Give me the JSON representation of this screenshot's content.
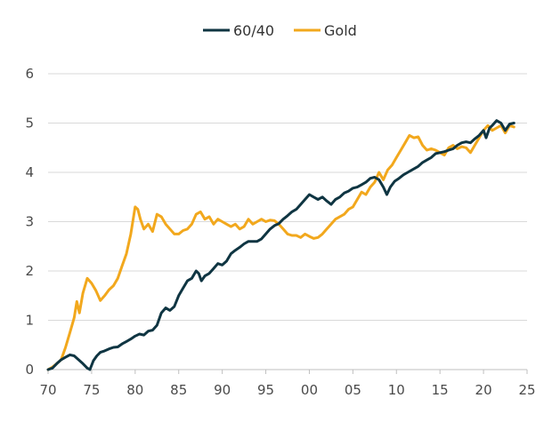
{
  "chart_data": {
    "type": "line",
    "title": "",
    "xlabel": "",
    "ylabel": "",
    "xlim": [
      1970,
      2025
    ],
    "ylim": [
      0,
      6
    ],
    "x_ticks": [
      {
        "value": 1970,
        "label": "70"
      },
      {
        "value": 1975,
        "label": "75"
      },
      {
        "value": 1980,
        "label": "80"
      },
      {
        "value": 1985,
        "label": "85"
      },
      {
        "value": 1990,
        "label": "90"
      },
      {
        "value": 1995,
        "label": "95"
      },
      {
        "value": 2000,
        "label": "00"
      },
      {
        "value": 2005,
        "label": "05"
      },
      {
        "value": 2010,
        "label": "10"
      },
      {
        "value": 2015,
        "label": "15"
      },
      {
        "value": 2020,
        "label": "20"
      },
      {
        "value": 2025,
        "label": "25"
      }
    ],
    "y_ticks": [
      {
        "value": 0,
        "label": "0"
      },
      {
        "value": 1,
        "label": "1"
      },
      {
        "value": 2,
        "label": "2"
      },
      {
        "value": 3,
        "label": "3"
      },
      {
        "value": 4,
        "label": "4"
      },
      {
        "value": 5,
        "label": "5"
      },
      {
        "value": 6,
        "label": "6"
      }
    ],
    "grid": true,
    "legend_position": "top-center",
    "series": [
      {
        "name": "60/40",
        "color": "#0f3542",
        "points": [
          [
            1970.0,
            0.0
          ],
          [
            1970.5,
            0.03
          ],
          [
            1971.0,
            0.12
          ],
          [
            1971.5,
            0.2
          ],
          [
            1972.0,
            0.25
          ],
          [
            1972.5,
            0.3
          ],
          [
            1973.0,
            0.28
          ],
          [
            1973.5,
            0.2
          ],
          [
            1974.0,
            0.12
          ],
          [
            1974.5,
            0.03
          ],
          [
            1974.8,
            0.0
          ],
          [
            1975.2,
            0.18
          ],
          [
            1975.6,
            0.28
          ],
          [
            1976.0,
            0.35
          ],
          [
            1976.5,
            0.38
          ],
          [
            1977.0,
            0.42
          ],
          [
            1977.5,
            0.45
          ],
          [
            1978.0,
            0.46
          ],
          [
            1978.5,
            0.52
          ],
          [
            1979.0,
            0.57
          ],
          [
            1979.5,
            0.62
          ],
          [
            1980.0,
            0.68
          ],
          [
            1980.5,
            0.72
          ],
          [
            1981.0,
            0.7
          ],
          [
            1981.5,
            0.78
          ],
          [
            1982.0,
            0.8
          ],
          [
            1982.5,
            0.9
          ],
          [
            1983.0,
            1.15
          ],
          [
            1983.5,
            1.25
          ],
          [
            1984.0,
            1.2
          ],
          [
            1984.5,
            1.28
          ],
          [
            1985.0,
            1.5
          ],
          [
            1985.5,
            1.65
          ],
          [
            1986.0,
            1.8
          ],
          [
            1986.5,
            1.85
          ],
          [
            1987.0,
            2.0
          ],
          [
            1987.3,
            1.95
          ],
          [
            1987.6,
            1.8
          ],
          [
            1988.0,
            1.9
          ],
          [
            1988.5,
            1.95
          ],
          [
            1989.0,
            2.05
          ],
          [
            1989.5,
            2.15
          ],
          [
            1990.0,
            2.12
          ],
          [
            1990.5,
            2.2
          ],
          [
            1991.0,
            2.35
          ],
          [
            1991.5,
            2.42
          ],
          [
            1992.0,
            2.48
          ],
          [
            1992.5,
            2.55
          ],
          [
            1993.0,
            2.6
          ],
          [
            1993.5,
            2.6
          ],
          [
            1994.0,
            2.6
          ],
          [
            1994.5,
            2.65
          ],
          [
            1995.0,
            2.75
          ],
          [
            1995.5,
            2.85
          ],
          [
            1996.0,
            2.92
          ],
          [
            1996.5,
            2.96
          ],
          [
            1997.0,
            3.05
          ],
          [
            1997.5,
            3.12
          ],
          [
            1998.0,
            3.2
          ],
          [
            1998.5,
            3.25
          ],
          [
            1999.0,
            3.35
          ],
          [
            1999.5,
            3.45
          ],
          [
            2000.0,
            3.55
          ],
          [
            2000.5,
            3.5
          ],
          [
            2001.0,
            3.45
          ],
          [
            2001.5,
            3.5
          ],
          [
            2002.0,
            3.42
          ],
          [
            2002.5,
            3.35
          ],
          [
            2003.0,
            3.45
          ],
          [
            2003.5,
            3.5
          ],
          [
            2004.0,
            3.58
          ],
          [
            2004.5,
            3.62
          ],
          [
            2005.0,
            3.68
          ],
          [
            2005.5,
            3.7
          ],
          [
            2006.0,
            3.75
          ],
          [
            2006.5,
            3.8
          ],
          [
            2007.0,
            3.88
          ],
          [
            2007.5,
            3.9
          ],
          [
            2008.0,
            3.85
          ],
          [
            2008.5,
            3.7
          ],
          [
            2008.9,
            3.55
          ],
          [
            2009.3,
            3.7
          ],
          [
            2009.8,
            3.82
          ],
          [
            2010.3,
            3.88
          ],
          [
            2010.8,
            3.95
          ],
          [
            2011.3,
            4.0
          ],
          [
            2011.8,
            4.05
          ],
          [
            2012.5,
            4.12
          ],
          [
            2013.0,
            4.2
          ],
          [
            2013.5,
            4.25
          ],
          [
            2014.0,
            4.3
          ],
          [
            2014.5,
            4.38
          ],
          [
            2015.0,
            4.4
          ],
          [
            2015.5,
            4.42
          ],
          [
            2016.0,
            4.45
          ],
          [
            2016.5,
            4.48
          ],
          [
            2017.0,
            4.55
          ],
          [
            2017.5,
            4.6
          ],
          [
            2018.0,
            4.62
          ],
          [
            2018.5,
            4.6
          ],
          [
            2019.0,
            4.68
          ],
          [
            2019.5,
            4.75
          ],
          [
            2020.0,
            4.85
          ],
          [
            2020.3,
            4.7
          ],
          [
            2020.7,
            4.9
          ],
          [
            2021.0,
            4.95
          ],
          [
            2021.5,
            5.05
          ],
          [
            2022.0,
            5.0
          ],
          [
            2022.5,
            4.85
          ],
          [
            2023.0,
            4.98
          ],
          [
            2023.5,
            5.0
          ]
        ]
      },
      {
        "name": "Gold",
        "color": "#f2a81d",
        "points": [
          [
            1970.0,
            0.0
          ],
          [
            1970.5,
            0.05
          ],
          [
            1971.0,
            0.12
          ],
          [
            1971.5,
            0.2
          ],
          [
            1972.0,
            0.45
          ],
          [
            1972.5,
            0.75
          ],
          [
            1973.0,
            1.05
          ],
          [
            1973.3,
            1.38
          ],
          [
            1973.6,
            1.15
          ],
          [
            1974.0,
            1.55
          ],
          [
            1974.5,
            1.85
          ],
          [
            1975.0,
            1.75
          ],
          [
            1975.5,
            1.6
          ],
          [
            1976.0,
            1.4
          ],
          [
            1976.5,
            1.5
          ],
          [
            1977.0,
            1.62
          ],
          [
            1977.5,
            1.7
          ],
          [
            1978.0,
            1.85
          ],
          [
            1978.5,
            2.1
          ],
          [
            1979.0,
            2.35
          ],
          [
            1979.5,
            2.75
          ],
          [
            1980.0,
            3.3
          ],
          [
            1980.3,
            3.25
          ],
          [
            1980.6,
            3.05
          ],
          [
            1981.0,
            2.85
          ],
          [
            1981.5,
            2.95
          ],
          [
            1982.0,
            2.8
          ],
          [
            1982.5,
            3.15
          ],
          [
            1983.0,
            3.1
          ],
          [
            1983.5,
            2.95
          ],
          [
            1984.0,
            2.85
          ],
          [
            1984.5,
            2.75
          ],
          [
            1985.0,
            2.75
          ],
          [
            1985.5,
            2.82
          ],
          [
            1986.0,
            2.85
          ],
          [
            1986.5,
            2.95
          ],
          [
            1987.0,
            3.15
          ],
          [
            1987.5,
            3.2
          ],
          [
            1988.0,
            3.05
          ],
          [
            1988.5,
            3.1
          ],
          [
            1989.0,
            2.95
          ],
          [
            1989.5,
            3.05
          ],
          [
            1990.0,
            3.0
          ],
          [
            1990.5,
            2.95
          ],
          [
            1991.0,
            2.9
          ],
          [
            1991.5,
            2.95
          ],
          [
            1992.0,
            2.85
          ],
          [
            1992.5,
            2.9
          ],
          [
            1993.0,
            3.05
          ],
          [
            1993.5,
            2.95
          ],
          [
            1994.0,
            3.0
          ],
          [
            1994.5,
            3.05
          ],
          [
            1995.0,
            3.0
          ],
          [
            1995.5,
            3.03
          ],
          [
            1996.0,
            3.02
          ],
          [
            1996.5,
            2.95
          ],
          [
            1997.0,
            2.85
          ],
          [
            1997.5,
            2.75
          ],
          [
            1998.0,
            2.72
          ],
          [
            1998.5,
            2.72
          ],
          [
            1999.0,
            2.68
          ],
          [
            1999.5,
            2.75
          ],
          [
            2000.0,
            2.7
          ],
          [
            2000.5,
            2.66
          ],
          [
            2001.0,
            2.68
          ],
          [
            2001.5,
            2.75
          ],
          [
            2002.0,
            2.85
          ],
          [
            2002.5,
            2.95
          ],
          [
            2003.0,
            3.05
          ],
          [
            2003.5,
            3.1
          ],
          [
            2004.0,
            3.15
          ],
          [
            2004.5,
            3.25
          ],
          [
            2005.0,
            3.3
          ],
          [
            2005.5,
            3.45
          ],
          [
            2006.0,
            3.6
          ],
          [
            2006.5,
            3.55
          ],
          [
            2007.0,
            3.7
          ],
          [
            2007.5,
            3.8
          ],
          [
            2008.0,
            4.0
          ],
          [
            2008.5,
            3.85
          ],
          [
            2009.0,
            4.05
          ],
          [
            2009.5,
            4.15
          ],
          [
            2010.0,
            4.3
          ],
          [
            2010.5,
            4.45
          ],
          [
            2011.0,
            4.6
          ],
          [
            2011.5,
            4.75
          ],
          [
            2012.0,
            4.7
          ],
          [
            2012.5,
            4.72
          ],
          [
            2013.0,
            4.55
          ],
          [
            2013.5,
            4.45
          ],
          [
            2014.0,
            4.48
          ],
          [
            2014.5,
            4.45
          ],
          [
            2015.0,
            4.4
          ],
          [
            2015.5,
            4.35
          ],
          [
            2016.0,
            4.5
          ],
          [
            2016.5,
            4.55
          ],
          [
            2017.0,
            4.48
          ],
          [
            2017.5,
            4.52
          ],
          [
            2018.0,
            4.5
          ],
          [
            2018.5,
            4.4
          ],
          [
            2019.0,
            4.55
          ],
          [
            2019.5,
            4.7
          ],
          [
            2020.0,
            4.85
          ],
          [
            2020.5,
            4.95
          ],
          [
            2021.0,
            4.85
          ],
          [
            2021.5,
            4.9
          ],
          [
            2022.0,
            4.95
          ],
          [
            2022.5,
            4.8
          ],
          [
            2023.0,
            4.95
          ],
          [
            2023.5,
            4.92
          ]
        ]
      }
    ]
  }
}
